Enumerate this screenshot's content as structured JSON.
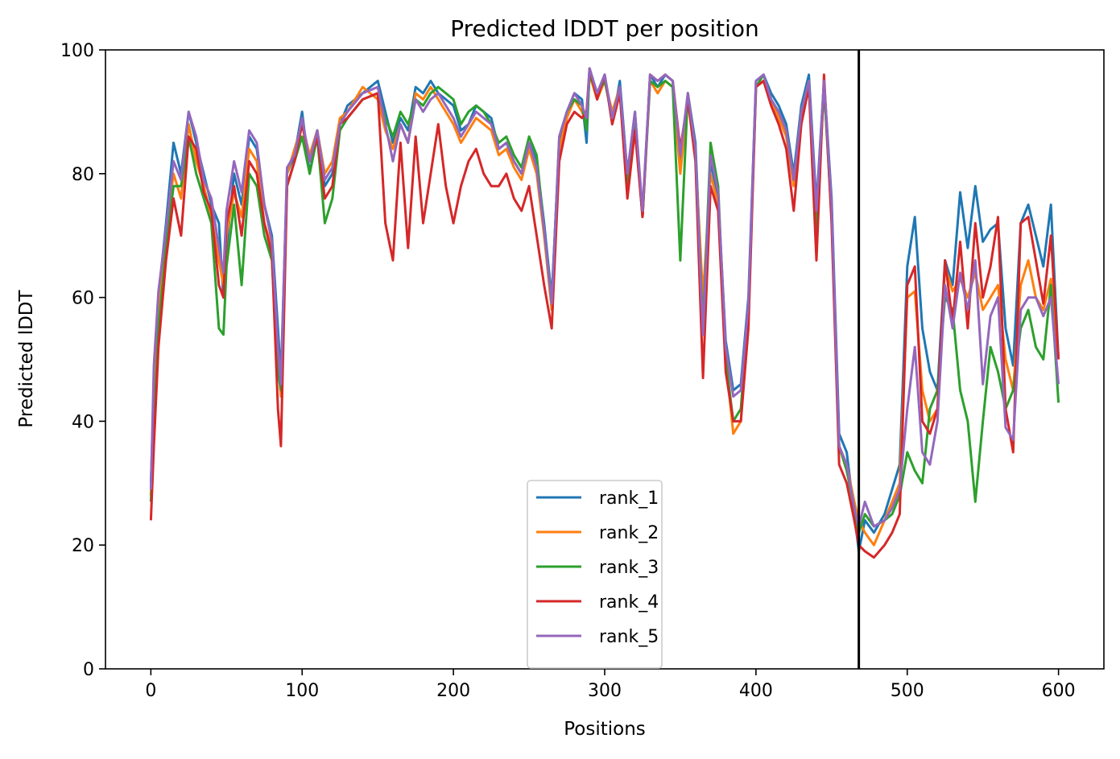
{
  "chart_data": {
    "type": "line",
    "title": "Predicted lDDT per position",
    "xlabel": "Positions",
    "ylabel": "Predicted lDDT",
    "xlim": [
      -30,
      630
    ],
    "ylim": [
      0,
      100
    ],
    "xticks": [
      0,
      100,
      200,
      300,
      400,
      500,
      600
    ],
    "yticks": [
      0,
      20,
      40,
      60,
      80,
      100
    ],
    "grid": false,
    "legend_position": "lower-center",
    "vertical_line_x": 468,
    "series": [
      {
        "name": "rank_1",
        "color": "#1f77b4",
        "x": [
          0,
          2,
          5,
          10,
          15,
          20,
          25,
          30,
          35,
          40,
          45,
          48,
          50,
          55,
          60,
          65,
          70,
          75,
          80,
          84,
          86,
          90,
          95,
          100,
          105,
          110,
          115,
          120,
          125,
          130,
          140,
          150,
          155,
          160,
          165,
          170,
          175,
          180,
          185,
          190,
          195,
          200,
          205,
          210,
          215,
          220,
          225,
          230,
          235,
          240,
          245,
          250,
          255,
          260,
          265,
          270,
          275,
          280,
          285,
          288,
          290,
          295,
          300,
          305,
          310,
          315,
          320,
          325,
          330,
          335,
          340,
          345,
          350,
          355,
          360,
          365,
          370,
          375,
          380,
          385,
          390,
          395,
          400,
          405,
          410,
          415,
          420,
          425,
          430,
          435,
          440,
          445,
          450,
          455,
          460,
          465,
          468,
          472,
          478,
          485,
          490,
          495,
          500,
          505,
          510,
          515,
          520,
          525,
          530,
          535,
          540,
          545,
          550,
          555,
          560,
          565,
          570,
          575,
          580,
          585,
          590,
          595,
          600
        ],
        "values": [
          30,
          45,
          60,
          72,
          85,
          80,
          90,
          85,
          80,
          75,
          72,
          60,
          68,
          80,
          75,
          86,
          84,
          75,
          70,
          55,
          47,
          80,
          83,
          90,
          80,
          87,
          78,
          80,
          88,
          91,
          93,
          95,
          90,
          85,
          89,
          87,
          94,
          93,
          95,
          93,
          92,
          91,
          87,
          88,
          91,
          90,
          89,
          84,
          85,
          82,
          80,
          85,
          82,
          72,
          60,
          85,
          90,
          93,
          92,
          85,
          97,
          93,
          96,
          88,
          95,
          80,
          90,
          73,
          96,
          94,
          96,
          95,
          82,
          93,
          85,
          56,
          82,
          76,
          53,
          45,
          46,
          60,
          95,
          96,
          93,
          91,
          88,
          80,
          91,
          96,
          75,
          95,
          76,
          38,
          35,
          25,
          19,
          24,
          22,
          25,
          29,
          33,
          65,
          73,
          55,
          48,
          45,
          66,
          62,
          77,
          68,
          78,
          69,
          71,
          72,
          55,
          49,
          72,
          75,
          70,
          65,
          75,
          50
        ]
      },
      {
        "name": "rank_2",
        "color": "#ff7f0e",
        "x": [
          0,
          2,
          5,
          10,
          15,
          20,
          25,
          30,
          35,
          40,
          45,
          48,
          50,
          55,
          60,
          65,
          70,
          75,
          80,
          84,
          86,
          90,
          95,
          100,
          105,
          110,
          115,
          120,
          125,
          130,
          140,
          150,
          155,
          160,
          165,
          170,
          175,
          180,
          185,
          190,
          195,
          200,
          205,
          210,
          215,
          220,
          225,
          230,
          235,
          240,
          245,
          250,
          255,
          260,
          265,
          270,
          275,
          280,
          285,
          288,
          290,
          295,
          300,
          305,
          310,
          315,
          320,
          325,
          330,
          335,
          340,
          345,
          350,
          355,
          360,
          365,
          370,
          375,
          380,
          385,
          390,
          395,
          400,
          405,
          410,
          415,
          420,
          425,
          430,
          435,
          440,
          445,
          450,
          455,
          460,
          465,
          468,
          472,
          478,
          485,
          490,
          495,
          500,
          505,
          510,
          515,
          520,
          525,
          530,
          535,
          540,
          545,
          550,
          555,
          560,
          565,
          570,
          575,
          580,
          585,
          590,
          595,
          600
        ],
        "values": [
          28,
          42,
          57,
          70,
          80,
          76,
          88,
          82,
          78,
          73,
          66,
          62,
          70,
          77,
          73,
          84,
          82,
          72,
          68,
          50,
          44,
          80,
          84,
          88,
          83,
          87,
          80,
          82,
          89,
          90,
          94,
          92,
          87,
          84,
          88,
          85,
          93,
          92,
          94,
          92,
          90,
          88,
          85,
          87,
          89,
          88,
          87,
          83,
          84,
          81,
          79,
          84,
          80,
          70,
          58,
          84,
          89,
          92,
          90,
          88,
          96,
          92,
          95,
          90,
          94,
          79,
          89,
          74,
          95,
          93,
          95,
          94,
          80,
          92,
          83,
          60,
          80,
          75,
          50,
          38,
          40,
          57,
          94,
          95,
          92,
          89,
          86,
          78,
          90,
          95,
          73,
          94,
          74,
          36,
          33,
          27,
          24,
          22,
          20,
          24,
          27,
          30,
          60,
          61,
          45,
          40,
          42,
          65,
          61,
          63,
          60,
          64,
          58,
          60,
          62,
          50,
          45,
          62,
          66,
          60,
          58,
          63,
          50
        ]
      },
      {
        "name": "rank_3",
        "color": "#2ca02c",
        "x": [
          0,
          2,
          5,
          10,
          15,
          20,
          25,
          30,
          35,
          40,
          45,
          48,
          50,
          55,
          60,
          65,
          70,
          75,
          80,
          84,
          86,
          90,
          95,
          100,
          105,
          110,
          115,
          120,
          125,
          130,
          140,
          150,
          155,
          160,
          165,
          170,
          175,
          180,
          185,
          190,
          195,
          200,
          205,
          210,
          215,
          220,
          225,
          230,
          235,
          240,
          245,
          250,
          255,
          260,
          265,
          270,
          275,
          280,
          285,
          288,
          290,
          295,
          300,
          305,
          310,
          315,
          320,
          325,
          330,
          335,
          340,
          345,
          350,
          355,
          360,
          365,
          370,
          375,
          380,
          385,
          390,
          395,
          400,
          405,
          410,
          415,
          420,
          425,
          430,
          435,
          440,
          445,
          450,
          455,
          460,
          465,
          468,
          472,
          478,
          485,
          490,
          495,
          500,
          505,
          510,
          515,
          520,
          525,
          530,
          535,
          540,
          545,
          550,
          555,
          560,
          565,
          570,
          575,
          580,
          585,
          590,
          595,
          600
        ],
        "values": [
          27,
          38,
          55,
          68,
          78,
          78,
          86,
          80,
          76,
          72,
          55,
          54,
          65,
          75,
          62,
          80,
          78,
          70,
          66,
          48,
          45,
          78,
          82,
          86,
          80,
          86,
          72,
          76,
          87,
          89,
          92,
          93,
          89,
          86,
          90,
          88,
          92,
          91,
          93,
          94,
          93,
          92,
          88,
          90,
          91,
          90,
          88,
          85,
          86,
          83,
          81,
          86,
          83,
          71,
          59,
          86,
          90,
          92,
          91,
          87,
          96,
          93,
          95,
          89,
          93,
          78,
          88,
          73,
          95,
          94,
          95,
          94,
          66,
          93,
          84,
          55,
          85,
          78,
          50,
          40,
          42,
          58,
          94,
          96,
          92,
          90,
          87,
          79,
          90,
          95,
          71,
          94,
          73,
          36,
          32,
          26,
          22,
          25,
          23,
          24,
          25,
          28,
          35,
          32,
          30,
          42,
          45,
          60,
          58,
          45,
          40,
          27,
          40,
          52,
          48,
          42,
          45,
          55,
          58,
          52,
          50,
          62,
          43
        ]
      },
      {
        "name": "rank_4",
        "color": "#d62728",
        "x": [
          0,
          2,
          5,
          10,
          15,
          20,
          25,
          30,
          35,
          40,
          45,
          48,
          50,
          55,
          60,
          65,
          70,
          75,
          80,
          84,
          86,
          90,
          95,
          100,
          105,
          110,
          115,
          120,
          125,
          130,
          140,
          150,
          155,
          160,
          165,
          170,
          175,
          180,
          185,
          190,
          195,
          200,
          205,
          210,
          215,
          220,
          225,
          230,
          235,
          240,
          245,
          250,
          255,
          260,
          265,
          270,
          275,
          280,
          285,
          288,
          290,
          295,
          300,
          305,
          310,
          315,
          320,
          325,
          330,
          335,
          340,
          345,
          350,
          355,
          360,
          365,
          370,
          375,
          380,
          385,
          390,
          395,
          400,
          405,
          410,
          415,
          420,
          425,
          430,
          435,
          440,
          445,
          450,
          455,
          460,
          465,
          468,
          472,
          478,
          485,
          490,
          495,
          500,
          505,
          510,
          515,
          520,
          525,
          530,
          535,
          540,
          545,
          550,
          555,
          560,
          565,
          570,
          575,
          580,
          585,
          590,
          595,
          600
        ],
        "values": [
          24,
          36,
          52,
          66,
          76,
          70,
          86,
          84,
          77,
          74,
          62,
          60,
          72,
          78,
          70,
          82,
          80,
          72,
          67,
          42,
          36,
          78,
          82,
          88,
          82,
          86,
          76,
          78,
          88,
          89,
          92,
          93,
          72,
          66,
          85,
          68,
          86,
          72,
          80,
          88,
          78,
          72,
          78,
          82,
          84,
          80,
          78,
          78,
          80,
          76,
          74,
          78,
          70,
          62,
          55,
          82,
          88,
          90,
          89,
          90,
          97,
          92,
          96,
          88,
          93,
          76,
          87,
          73,
          96,
          95,
          96,
          95,
          84,
          92,
          82,
          47,
          78,
          74,
          48,
          40,
          40,
          55,
          94,
          95,
          91,
          88,
          84,
          74,
          88,
          94,
          66,
          96,
          72,
          33,
          30,
          24,
          20,
          19,
          18,
          20,
          22,
          25,
          62,
          65,
          40,
          38,
          42,
          66,
          56,
          69,
          55,
          72,
          60,
          65,
          73,
          42,
          35,
          72,
          73,
          66,
          59,
          70,
          50
        ]
      },
      {
        "name": "rank_5",
        "color": "#9467bd",
        "x": [
          0,
          2,
          5,
          10,
          15,
          20,
          25,
          30,
          35,
          40,
          45,
          48,
          50,
          55,
          60,
          65,
          70,
          75,
          80,
          84,
          86,
          90,
          95,
          100,
          105,
          110,
          115,
          120,
          125,
          130,
          140,
          150,
          155,
          160,
          165,
          170,
          175,
          180,
          185,
          190,
          195,
          200,
          205,
          210,
          215,
          220,
          225,
          230,
          235,
          240,
          245,
          250,
          255,
          260,
          265,
          270,
          275,
          280,
          285,
          288,
          290,
          295,
          300,
          305,
          310,
          315,
          320,
          325,
          330,
          335,
          340,
          345,
          350,
          355,
          360,
          365,
          370,
          375,
          380,
          385,
          390,
          395,
          400,
          405,
          410,
          415,
          420,
          425,
          430,
          435,
          440,
          445,
          450,
          455,
          460,
          465,
          468,
          472,
          478,
          485,
          490,
          495,
          500,
          505,
          510,
          515,
          520,
          525,
          530,
          535,
          540,
          545,
          550,
          555,
          560,
          565,
          570,
          575,
          580,
          585,
          590,
          595,
          600
        ],
        "values": [
          29,
          49,
          61,
          71,
          82,
          79,
          90,
          86,
          79,
          76,
          68,
          64,
          74,
          82,
          77,
          87,
          85,
          75,
          69,
          52,
          46,
          81,
          83,
          89,
          82,
          87,
          79,
          81,
          88,
          90,
          93,
          94,
          88,
          82,
          88,
          85,
          92,
          90,
          92,
          93,
          91,
          89,
          86,
          88,
          90,
          89,
          88,
          84,
          85,
          82,
          80,
          85,
          81,
          71,
          59,
          86,
          90,
          93,
          91,
          89,
          97,
          93,
          96,
          89,
          94,
          80,
          90,
          74,
          96,
          95,
          96,
          95,
          83,
          93,
          84,
          54,
          83,
          77,
          52,
          44,
          45,
          59,
          95,
          96,
          92,
          90,
          87,
          79,
          90,
          95,
          74,
          95,
          75,
          36,
          33,
          26,
          23,
          27,
          23,
          24,
          26,
          29,
          42,
          52,
          35,
          33,
          40,
          62,
          55,
          64,
          58,
          66,
          46,
          57,
          60,
          39,
          37,
          58,
          60,
          60,
          57,
          60,
          46
        ]
      }
    ]
  }
}
